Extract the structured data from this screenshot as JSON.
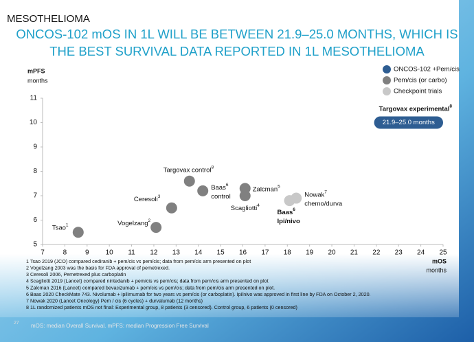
{
  "header": "MESOTHELIOMA",
  "chart_data": {
    "type": "scatter",
    "title": [
      "ONCOS-102 mOS IN 1L WILL BE BETWEEN 21.9–25.0 MONTHS, WHICH IS",
      "THE BEST SURVIVAL DATA REPORTED IN 1L MESOTHELIOMA"
    ],
    "y_label": [
      "mPFS",
      "months"
    ],
    "x_label": [
      "mOS",
      "months"
    ],
    "xlim": [
      7,
      25
    ],
    "xticks": [
      7,
      8,
      9,
      10,
      11,
      12,
      13,
      14,
      15,
      16,
      17,
      18,
      19,
      20,
      21,
      22,
      23,
      24,
      25
    ],
    "ylim": [
      5,
      11
    ],
    "yticks": [
      5,
      6,
      7,
      8,
      9,
      10,
      11
    ],
    "legend": "top-right",
    "series": [
      {
        "name": "ONCOS-102 +Pem/cis",
        "color": "#2e5d92",
        "annotation": "Targovax experimental",
        "annotation_ref": "8",
        "x": [
          21.9,
          25.0
        ],
        "y": 10,
        "value_label": "21.9–25.0 months"
      },
      {
        "name": "Pem/cis (or carbo)",
        "color": "#808080",
        "x": [
          8.6,
          12.1,
          12.8,
          13.6,
          14.2,
          16.1,
          16.1
        ],
        "y": [
          5.5,
          5.7,
          6.5,
          7.6,
          7.2,
          7.3,
          7.0
        ],
        "labels": [
          [
            "Tsao"
          ],
          [
            "Vogelzang"
          ],
          [
            "Ceresoli"
          ],
          [
            "Targovax control"
          ],
          [
            "Baas",
            "control"
          ],
          [
            "Zalcman"
          ],
          [
            "Scagliotti"
          ]
        ],
        "refs": [
          "1",
          "2",
          "3",
          "8",
          "6",
          "5",
          "4"
        ]
      },
      {
        "name": "Checkpoint trials",
        "color": "#c8c8c8",
        "x": [
          18.1,
          18.4
        ],
        "y": [
          6.8,
          6.9
        ],
        "labels": [
          [
            "Baas",
            "Ipi/nivo"
          ],
          [
            "Nowak",
            "chemo/durva"
          ]
        ],
        "refs": [
          "6",
          "7"
        ]
      }
    ]
  },
  "footnotes": [
    "1 Tsao 2019 (JCO) compared cediranib + pem/cis vs pem/cis; data from pem/cis arm presented on plot",
    "2 Vogelzang 2003 was the basis for FDA approval of pemetrexed.",
    "3 Ceresoli 2006, Pemetrexed plus carboplatin",
    "4 Scagliotti 2019 (Lancet) compared nintedanib + pem/cis vs pem/cis; data from pem/cis arm presented on plot",
    "5 Zalcman 2016 (Lancet) compared bevacizumab + pem/cis vs pem/cis; data from pem/cis arm presented on plot.",
    "6 Baas 2020 CheckMate 743. Nivolumab + ipilimumab for two years vs pem/cis (or carboplatin). Ipi/nivo was approved in first line by FDA on October 2, 2020.",
    "7 Nowak 2020 (Lancet Oncology) Pem / cis (6 cycles) + durvalumab (12 months)",
    "8 1L randomized patients mOS not final: Experimental group, 8 patients (3 censored). Control group, 6 patients (0 censored)"
  ],
  "footer": {
    "page": "27",
    "text": "mOS: median Overall Survival. mPFS: median Progression Free Survival"
  }
}
